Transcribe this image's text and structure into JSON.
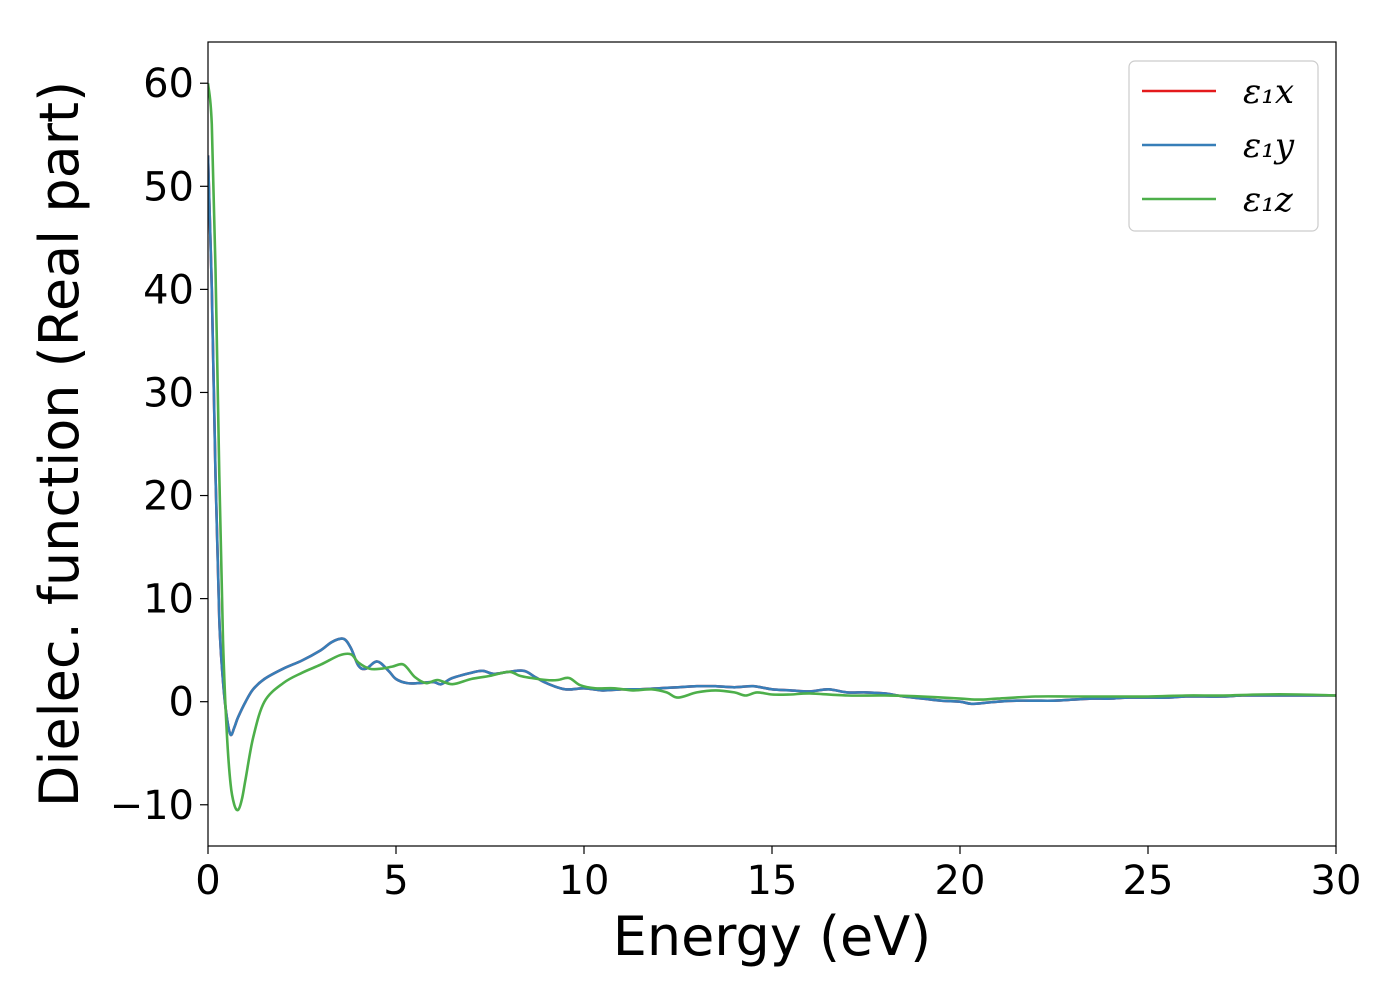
{
  "chart_data": {
    "type": "line",
    "title": "",
    "xlabel": "Energy (eV)",
    "ylabel": "Dielec. function (Real part)",
    "xlim": [
      0,
      30
    ],
    "ylim": [
      -14,
      64
    ],
    "xticks": [
      0,
      5,
      10,
      15,
      20,
      25,
      30
    ],
    "xtick_labels": [
      "0",
      "5",
      "10",
      "15",
      "20",
      "25",
      "30"
    ],
    "yticks": [
      -10,
      0,
      10,
      20,
      30,
      40,
      50,
      60
    ],
    "ytick_labels": [
      "−10",
      "0",
      "10",
      "20",
      "30",
      "40",
      "50",
      "60"
    ],
    "grid": false,
    "legend_position": "top-right",
    "series": [
      {
        "name": "ε₁x",
        "color": "#e41a1c",
        "x": [
          0,
          0.1,
          0.2,
          0.3,
          0.4,
          0.5,
          0.6,
          0.7,
          0.8,
          1.0,
          1.2,
          1.5,
          2.0,
          2.5,
          3.0,
          3.3,
          3.6,
          3.8,
          4.0,
          4.2,
          4.5,
          4.8,
          5.0,
          5.3,
          5.6,
          6.0,
          6.2,
          6.5,
          7.0,
          7.3,
          7.6,
          8.0,
          8.4,
          8.7,
          9.0,
          9.5,
          10.0,
          10.5,
          11.0,
          11.5,
          12.0,
          12.5,
          13.0,
          13.5,
          14.0,
          14.5,
          15.0,
          15.5,
          16.0,
          16.5,
          17.0,
          17.5,
          18.0,
          18.5,
          19.0,
          19.5,
          20.0,
          20.3,
          20.7,
          21.0,
          21.5,
          22.0,
          22.5,
          23.0,
          23.5,
          24.0,
          24.5,
          25.0,
          25.5,
          26.0,
          26.5,
          27.0,
          27.5,
          28.0,
          28.5,
          29.0,
          29.5,
          30.0
        ],
        "y": [
          53,
          40,
          22,
          8,
          2,
          -1.5,
          -3.2,
          -2.5,
          -1.5,
          0,
          1.2,
          2.2,
          3.2,
          4,
          5,
          5.8,
          6.1,
          5.2,
          3.5,
          3.2,
          3.9,
          3,
          2.2,
          1.8,
          1.8,
          1.9,
          1.7,
          2.3,
          2.8,
          3,
          2.7,
          2.9,
          3,
          2.4,
          1.8,
          1.2,
          1.3,
          1.1,
          1.2,
          1.2,
          1.3,
          1.4,
          1.5,
          1.5,
          1.4,
          1.5,
          1.2,
          1.1,
          1.0,
          1.2,
          0.9,
          0.9,
          0.8,
          0.5,
          0.3,
          0.1,
          0.0,
          -0.2,
          -0.1,
          0.0,
          0.1,
          0.1,
          0.1,
          0.2,
          0.3,
          0.3,
          0.4,
          0.4,
          0.4,
          0.5,
          0.5,
          0.5,
          0.6,
          0.6,
          0.6,
          0.6,
          0.6,
          0.6
        ]
      },
      {
        "name": "ε₁y",
        "color": "#377eb8",
        "x": [
          0,
          0.1,
          0.2,
          0.3,
          0.4,
          0.5,
          0.6,
          0.7,
          0.8,
          1.0,
          1.2,
          1.5,
          2.0,
          2.5,
          3.0,
          3.3,
          3.6,
          3.8,
          4.0,
          4.2,
          4.5,
          4.8,
          5.0,
          5.3,
          5.6,
          6.0,
          6.2,
          6.5,
          7.0,
          7.3,
          7.6,
          8.0,
          8.4,
          8.7,
          9.0,
          9.5,
          10.0,
          10.5,
          11.0,
          11.5,
          12.0,
          12.5,
          13.0,
          13.5,
          14.0,
          14.5,
          15.0,
          15.5,
          16.0,
          16.5,
          17.0,
          17.5,
          18.0,
          18.5,
          19.0,
          19.5,
          20.0,
          20.3,
          20.7,
          21.0,
          21.5,
          22.0,
          22.5,
          23.0,
          23.5,
          24.0,
          24.5,
          25.0,
          25.5,
          26.0,
          26.5,
          27.0,
          27.5,
          28.0,
          28.5,
          29.0,
          29.5,
          30.0
        ],
        "y": [
          53,
          40,
          22,
          8,
          2,
          -1.5,
          -3.2,
          -2.5,
          -1.5,
          0,
          1.2,
          2.2,
          3.2,
          4,
          5,
          5.8,
          6.1,
          5.2,
          3.5,
          3.2,
          3.9,
          3,
          2.2,
          1.8,
          1.8,
          1.9,
          1.7,
          2.3,
          2.8,
          3,
          2.7,
          2.9,
          3,
          2.4,
          1.8,
          1.2,
          1.3,
          1.1,
          1.2,
          1.2,
          1.3,
          1.4,
          1.5,
          1.5,
          1.4,
          1.5,
          1.2,
          1.1,
          1.0,
          1.2,
          0.9,
          0.9,
          0.8,
          0.5,
          0.3,
          0.1,
          0.0,
          -0.2,
          -0.1,
          0.0,
          0.1,
          0.1,
          0.1,
          0.2,
          0.3,
          0.3,
          0.4,
          0.4,
          0.4,
          0.5,
          0.5,
          0.5,
          0.6,
          0.6,
          0.6,
          0.6,
          0.6,
          0.6
        ]
      },
      {
        "name": "ε₁z",
        "color": "#4daf4a",
        "x": [
          0,
          0.1,
          0.2,
          0.3,
          0.4,
          0.5,
          0.6,
          0.7,
          0.8,
          0.9,
          1.0,
          1.2,
          1.5,
          2.0,
          2.5,
          3.0,
          3.5,
          3.8,
          4.0,
          4.3,
          4.6,
          4.9,
          5.2,
          5.5,
          5.8,
          6.1,
          6.5,
          7.0,
          7.5,
          8.0,
          8.3,
          8.6,
          9.0,
          9.3,
          9.6,
          9.9,
          10.3,
          10.8,
          11.3,
          11.8,
          12.2,
          12.5,
          13.0,
          13.5,
          14.0,
          14.3,
          14.6,
          15.0,
          15.5,
          16.0,
          17.0,
          18.0,
          19.0,
          20.0,
          20.5,
          21.0,
          22.0,
          23.0,
          24.0,
          25.0,
          26.0,
          27.0,
          28.0,
          29.0,
          30.0
        ],
        "y": [
          60,
          56,
          42,
          22,
          6,
          -3,
          -8,
          -10,
          -10.5,
          -9.5,
          -7.5,
          -3.5,
          0,
          1.8,
          2.8,
          3.6,
          4.5,
          4.6,
          3.8,
          3.2,
          3.2,
          3.4,
          3.6,
          2.4,
          1.8,
          2.1,
          1.7,
          2.2,
          2.5,
          2.9,
          2.5,
          2.3,
          2.1,
          2.1,
          2.3,
          1.6,
          1.3,
          1.3,
          1.1,
          1.2,
          0.9,
          0.4,
          0.9,
          1.1,
          0.9,
          0.6,
          0.9,
          0.7,
          0.7,
          0.8,
          0.6,
          0.6,
          0.5,
          0.3,
          0.2,
          0.3,
          0.5,
          0.5,
          0.5,
          0.5,
          0.6,
          0.6,
          0.7,
          0.7,
          0.6
        ]
      }
    ]
  }
}
